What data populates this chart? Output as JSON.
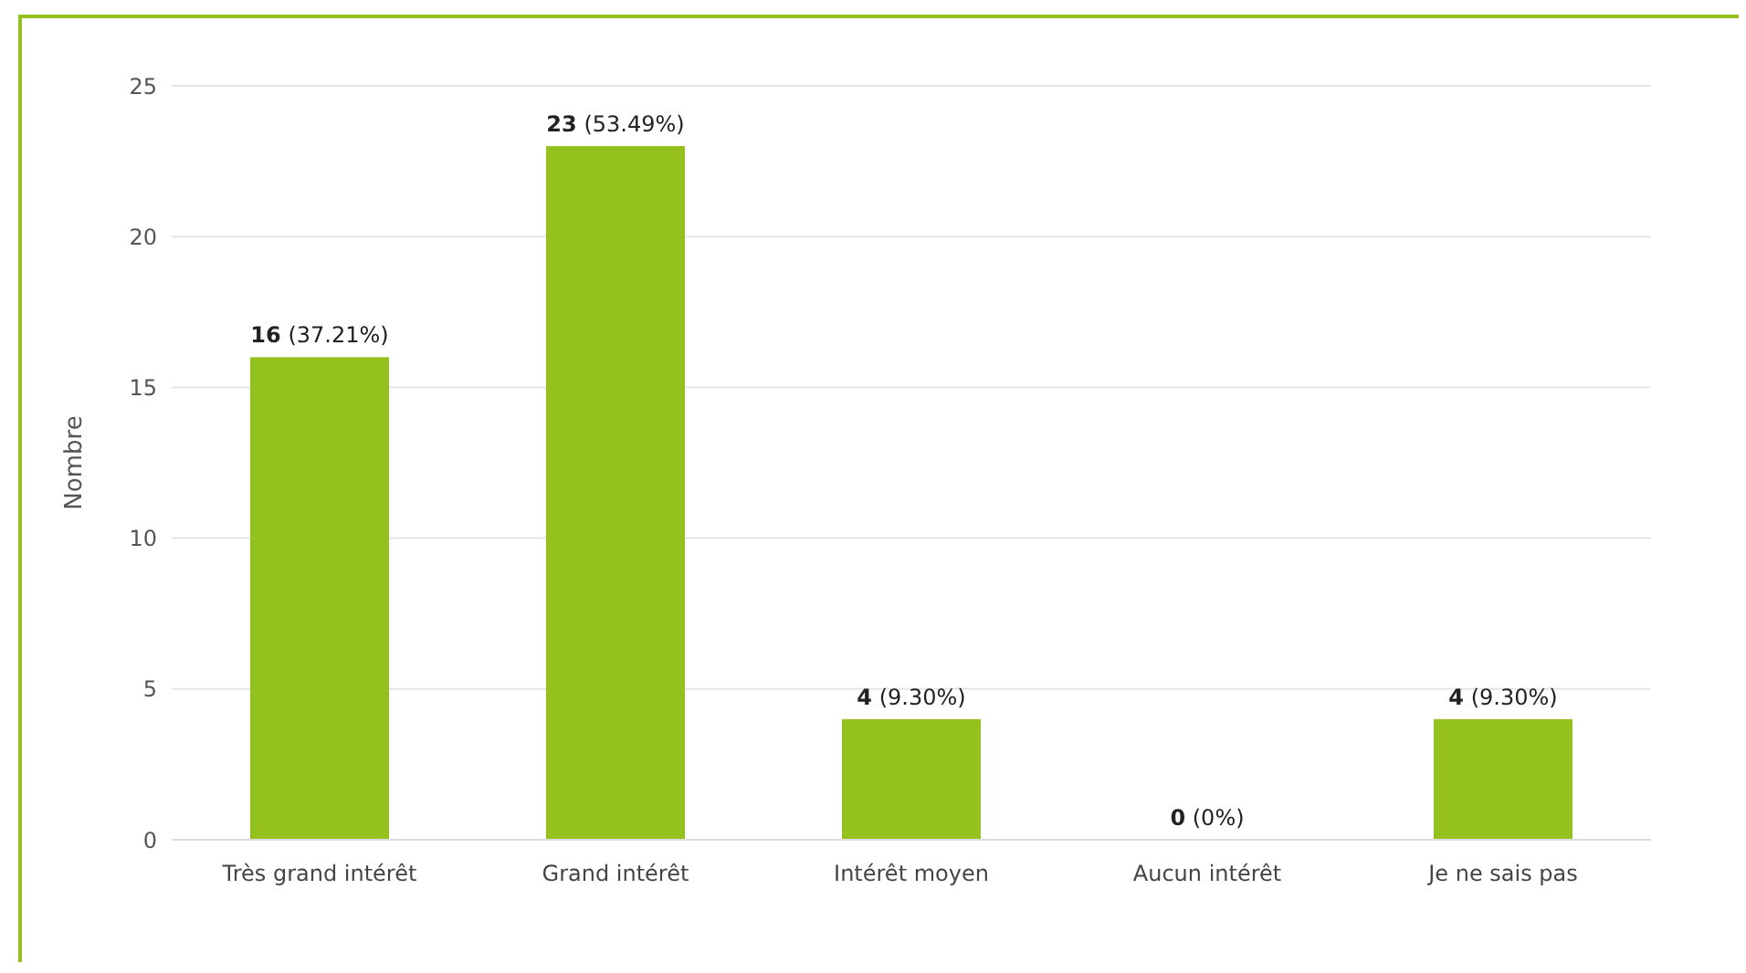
{
  "chart_data": {
    "type": "bar",
    "ylabel": "Nombre",
    "categories": [
      "Très grand intérêt",
      "Grand intérêt",
      "Intérêt moyen",
      "Aucun intérêt",
      "Je ne sais pas"
    ],
    "values": [
      16,
      23,
      4,
      0,
      4
    ],
    "value_labels": [
      "16 (37.21%)",
      "23 (53.49%)",
      "4 (9.30%)",
      "0 (0%)",
      "4 (9.30%)"
    ],
    "color": "#95c11f",
    "ylim": [
      0,
      25
    ],
    "yticks": [
      0,
      5,
      10,
      15,
      20,
      25
    ],
    "grid": "y",
    "legend": false
  }
}
